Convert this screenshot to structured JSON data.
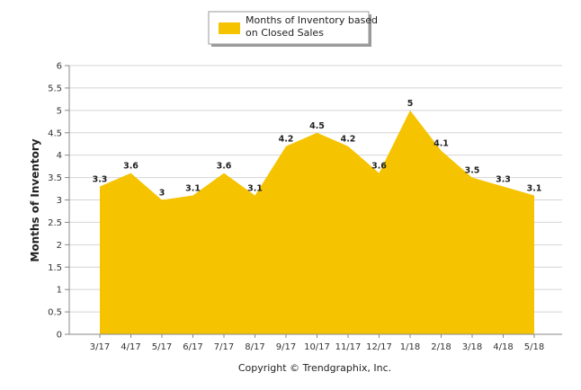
{
  "chart_data": {
    "type": "area",
    "title": "",
    "xlabel": "",
    "ylabel": "Months of Inventory",
    "categories": [
      "3/17",
      "4/17",
      "5/17",
      "6/17",
      "7/17",
      "8/17",
      "9/17",
      "10/17",
      "11/17",
      "12/17",
      "1/18",
      "2/18",
      "3/18",
      "4/18",
      "5/18"
    ],
    "series": [
      {
        "name": [
          "Months of Inventory based",
          "on Closed Sales"
        ],
        "values": [
          3.3,
          3.6,
          3,
          3.1,
          3.6,
          3.1,
          4.2,
          4.5,
          4.2,
          3.6,
          5,
          4.1,
          3.5,
          3.3,
          3.1
        ],
        "labels": [
          "3.3",
          "3.6",
          "3",
          "3.1",
          "3.6",
          "3.1",
          "4.2",
          "4.5",
          "4.2",
          "3.6",
          "5",
          "4.1",
          "3.5",
          "3.3",
          "3.1"
        ],
        "color": "#F5C300"
      }
    ],
    "ylim": [
      0,
      6
    ],
    "yticks": [
      "0",
      "0.5",
      "1",
      "1.5",
      "2",
      "2.5",
      "3",
      "3.5",
      "4",
      "4.5",
      "5",
      "5.5",
      "6"
    ],
    "grid": true,
    "legend_position": "top-center"
  },
  "copyright": "Copyright © Trendgraphix, Inc."
}
